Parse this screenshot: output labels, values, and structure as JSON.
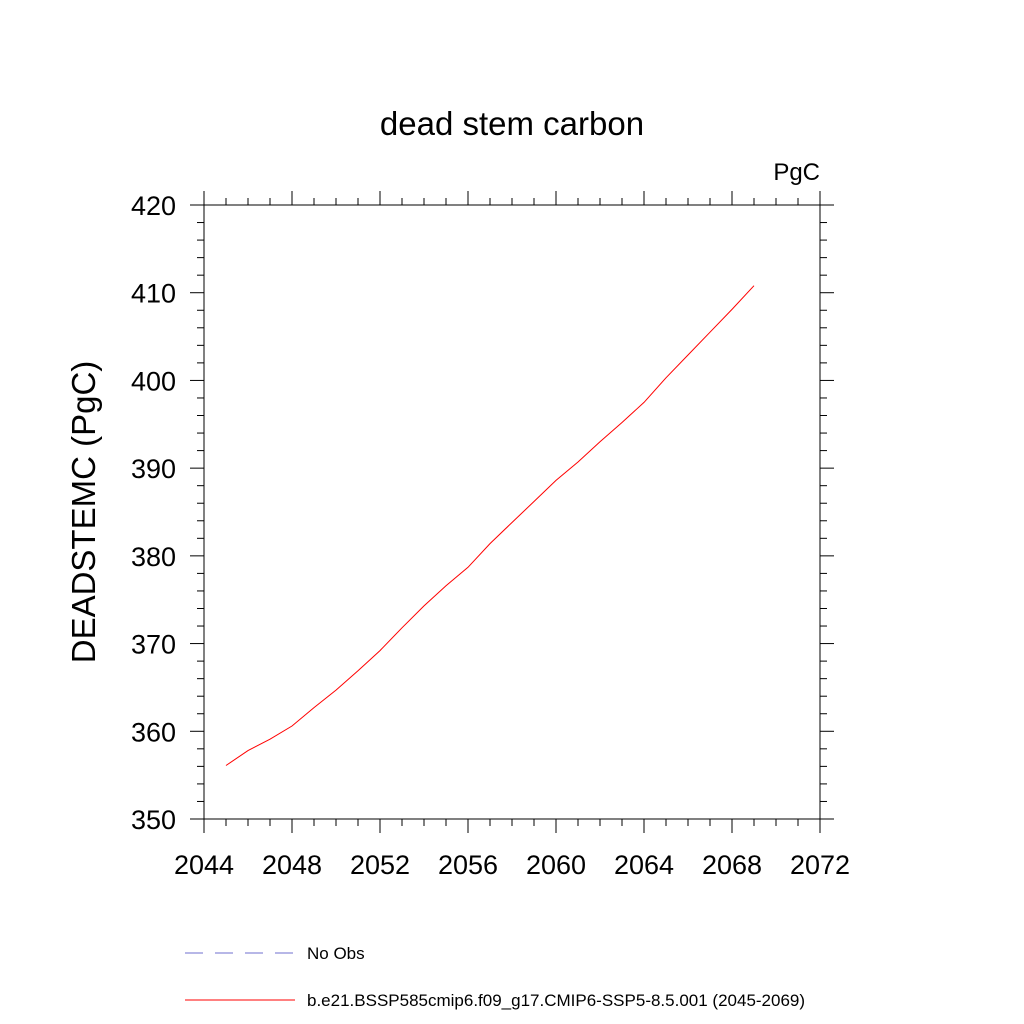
{
  "chart_data": {
    "type": "line",
    "title": "dead stem carbon",
    "units": "PgC",
    "xlabel": "",
    "ylabel": "DEADSTEMC  (PgC)",
    "xlim": [
      2044,
      2072
    ],
    "ylim": [
      350,
      420
    ],
    "xticks": [
      2044,
      2048,
      2052,
      2056,
      2060,
      2064,
      2068,
      2072
    ],
    "yticks": [
      350,
      360,
      370,
      380,
      390,
      400,
      410,
      420
    ],
    "grid": false,
    "legend_position": "bottom",
    "legend": [
      {
        "label": "No Obs",
        "color": "#6f6fcf",
        "style": "dashed"
      },
      {
        "label": "b.e21.BSSP585cmip6.f09_g17.CMIP6-SSP5-8.5.001 (2045-2069)",
        "color": "#ff0000",
        "style": "solid"
      }
    ],
    "series": [
      {
        "name": "b.e21.BSSP585cmip6.f09_g17.CMIP6-SSP5-8.5.001 (2045-2069)",
        "color": "#ff0000",
        "x": [
          2045,
          2046,
          2047,
          2048,
          2049,
          2050,
          2051,
          2052,
          2053,
          2054,
          2055,
          2056,
          2057,
          2058,
          2059,
          2060,
          2061,
          2062,
          2063,
          2064,
          2065,
          2066,
          2067,
          2068,
          2069
        ],
        "y": [
          356.1,
          357.8,
          359.1,
          360.6,
          362.7,
          364.7,
          366.9,
          369.2,
          371.8,
          374.3,
          376.6,
          378.7,
          381.4,
          383.8,
          386.2,
          388.6,
          390.7,
          393.0,
          395.2,
          397.5,
          400.3,
          402.9,
          405.5,
          408.1,
          410.8
        ]
      }
    ]
  }
}
